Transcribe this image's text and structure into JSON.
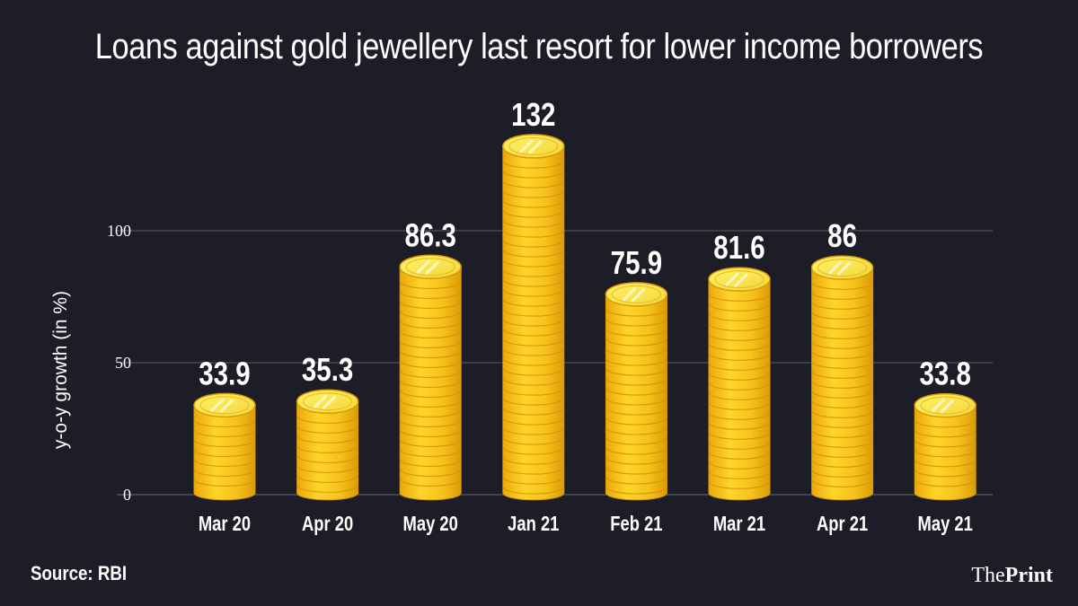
{
  "chart_data": {
    "type": "bar",
    "title": "Loans against gold jewellery last resort for lower income borrowers",
    "xlabel": "",
    "ylabel": "y-o-y growth (in %)",
    "categories": [
      "Mar 20",
      "Apr 20",
      "May 20",
      "Jan 21",
      "Feb 21",
      "Mar 21",
      "Apr 21",
      "May 21"
    ],
    "values": [
      33.9,
      35.3,
      86.3,
      132,
      75.9,
      81.6,
      86,
      33.8
    ],
    "value_labels": [
      "33.9",
      "35.3",
      "86.3",
      "132",
      "75.9",
      "81.6",
      "86",
      "33.8"
    ],
    "yticks": [
      0,
      50,
      100
    ],
    "ylim": [
      0,
      135
    ],
    "grid": true
  },
  "footer": {
    "source": "Source: RBI",
    "brand_part1": "The",
    "brand_part2": "Print"
  },
  "colors": {
    "background": "#1c1d26",
    "coin_face": "#f7e24a",
    "coin_stack": "#f2bf1b",
    "coin_edge": "#d99a07",
    "grid": "#5a5c66"
  }
}
